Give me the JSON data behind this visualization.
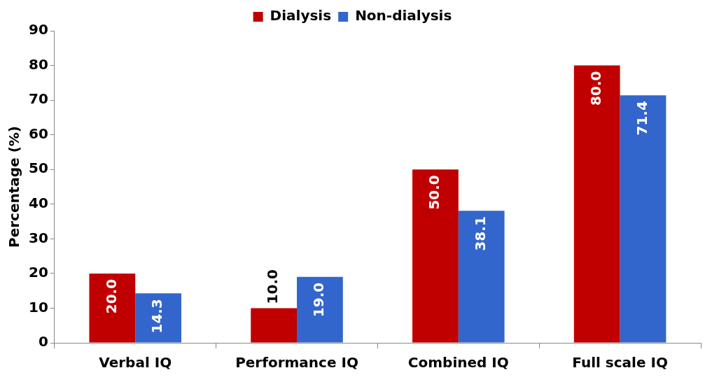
{
  "chart_data": {
    "type": "bar",
    "ylabel": "Percentage (%)",
    "categories": [
      "Verbal IQ",
      "Performance IQ",
      "Combined IQ",
      "Full scale IQ"
    ],
    "series": [
      {
        "name": "Dialysis",
        "color": "#c00000",
        "values": [
          20.0,
          10.0,
          50.0,
          80.0
        ],
        "value_labels": [
          "20.0",
          "10.0",
          "50.0",
          "80.0"
        ]
      },
      {
        "name": "Non-dialysis",
        "color": "#3366cc",
        "values": [
          14.3,
          19.0,
          38.1,
          71.4
        ],
        "value_labels": [
          "14.3",
          "19.0",
          "38.1",
          "71.4"
        ]
      }
    ],
    "ylim": [
      0,
      90
    ],
    "yticks": [
      0,
      10,
      20,
      30,
      40,
      50,
      60,
      70,
      80,
      90
    ],
    "grid": false,
    "legend": "top"
  }
}
